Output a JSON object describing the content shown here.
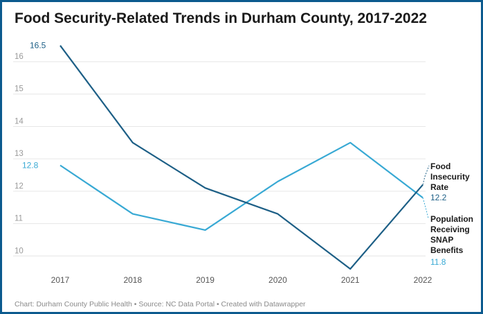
{
  "title": "Food Security-Related Trends in Durham County, 2017-2022",
  "footer": "Chart: Durham County Public Health • Source: NC Data Portal • Created with Datawrapper",
  "colors": {
    "food_insecurity": "#1d5f86",
    "snap": "#38a9d4",
    "grid": "#e6e6e6",
    "tick": "#9a9a9a",
    "border": "#0b5a8e"
  },
  "chart_data": {
    "type": "line",
    "x": [
      "2017",
      "2018",
      "2019",
      "2020",
      "2021",
      "2022"
    ],
    "ylim": [
      9.3,
      16.6
    ],
    "yticks": [
      "10",
      "11",
      "12",
      "13",
      "14",
      "15",
      "16"
    ],
    "grid": true,
    "series": [
      {
        "name": "Food Insecurity Rate",
        "values": [
          16.5,
          13.5,
          12.1,
          11.3,
          9.6,
          12.2
        ],
        "start_label": "16.5",
        "end_label": "12.2"
      },
      {
        "name": "Population Receiving SNAP Benefits",
        "values": [
          12.8,
          11.3,
          10.8,
          12.3,
          13.5,
          11.8
        ],
        "start_label": "12.8",
        "end_label": "11.8"
      }
    ]
  }
}
